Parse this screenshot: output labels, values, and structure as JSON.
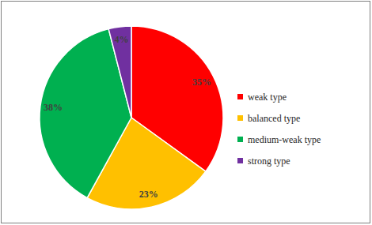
{
  "chart_data": {
    "type": "pie",
    "categories": [
      "weak type",
      "balanced type",
      "medium-weak type",
      "strong type"
    ],
    "values": [
      35,
      23,
      38,
      4
    ],
    "value_labels": [
      "35%",
      "23%",
      "38%",
      "4%"
    ],
    "colors": [
      "#ff0000",
      "#ffc000",
      "#00b050",
      "#7030a0"
    ],
    "data_labels": true,
    "legend": "right"
  }
}
